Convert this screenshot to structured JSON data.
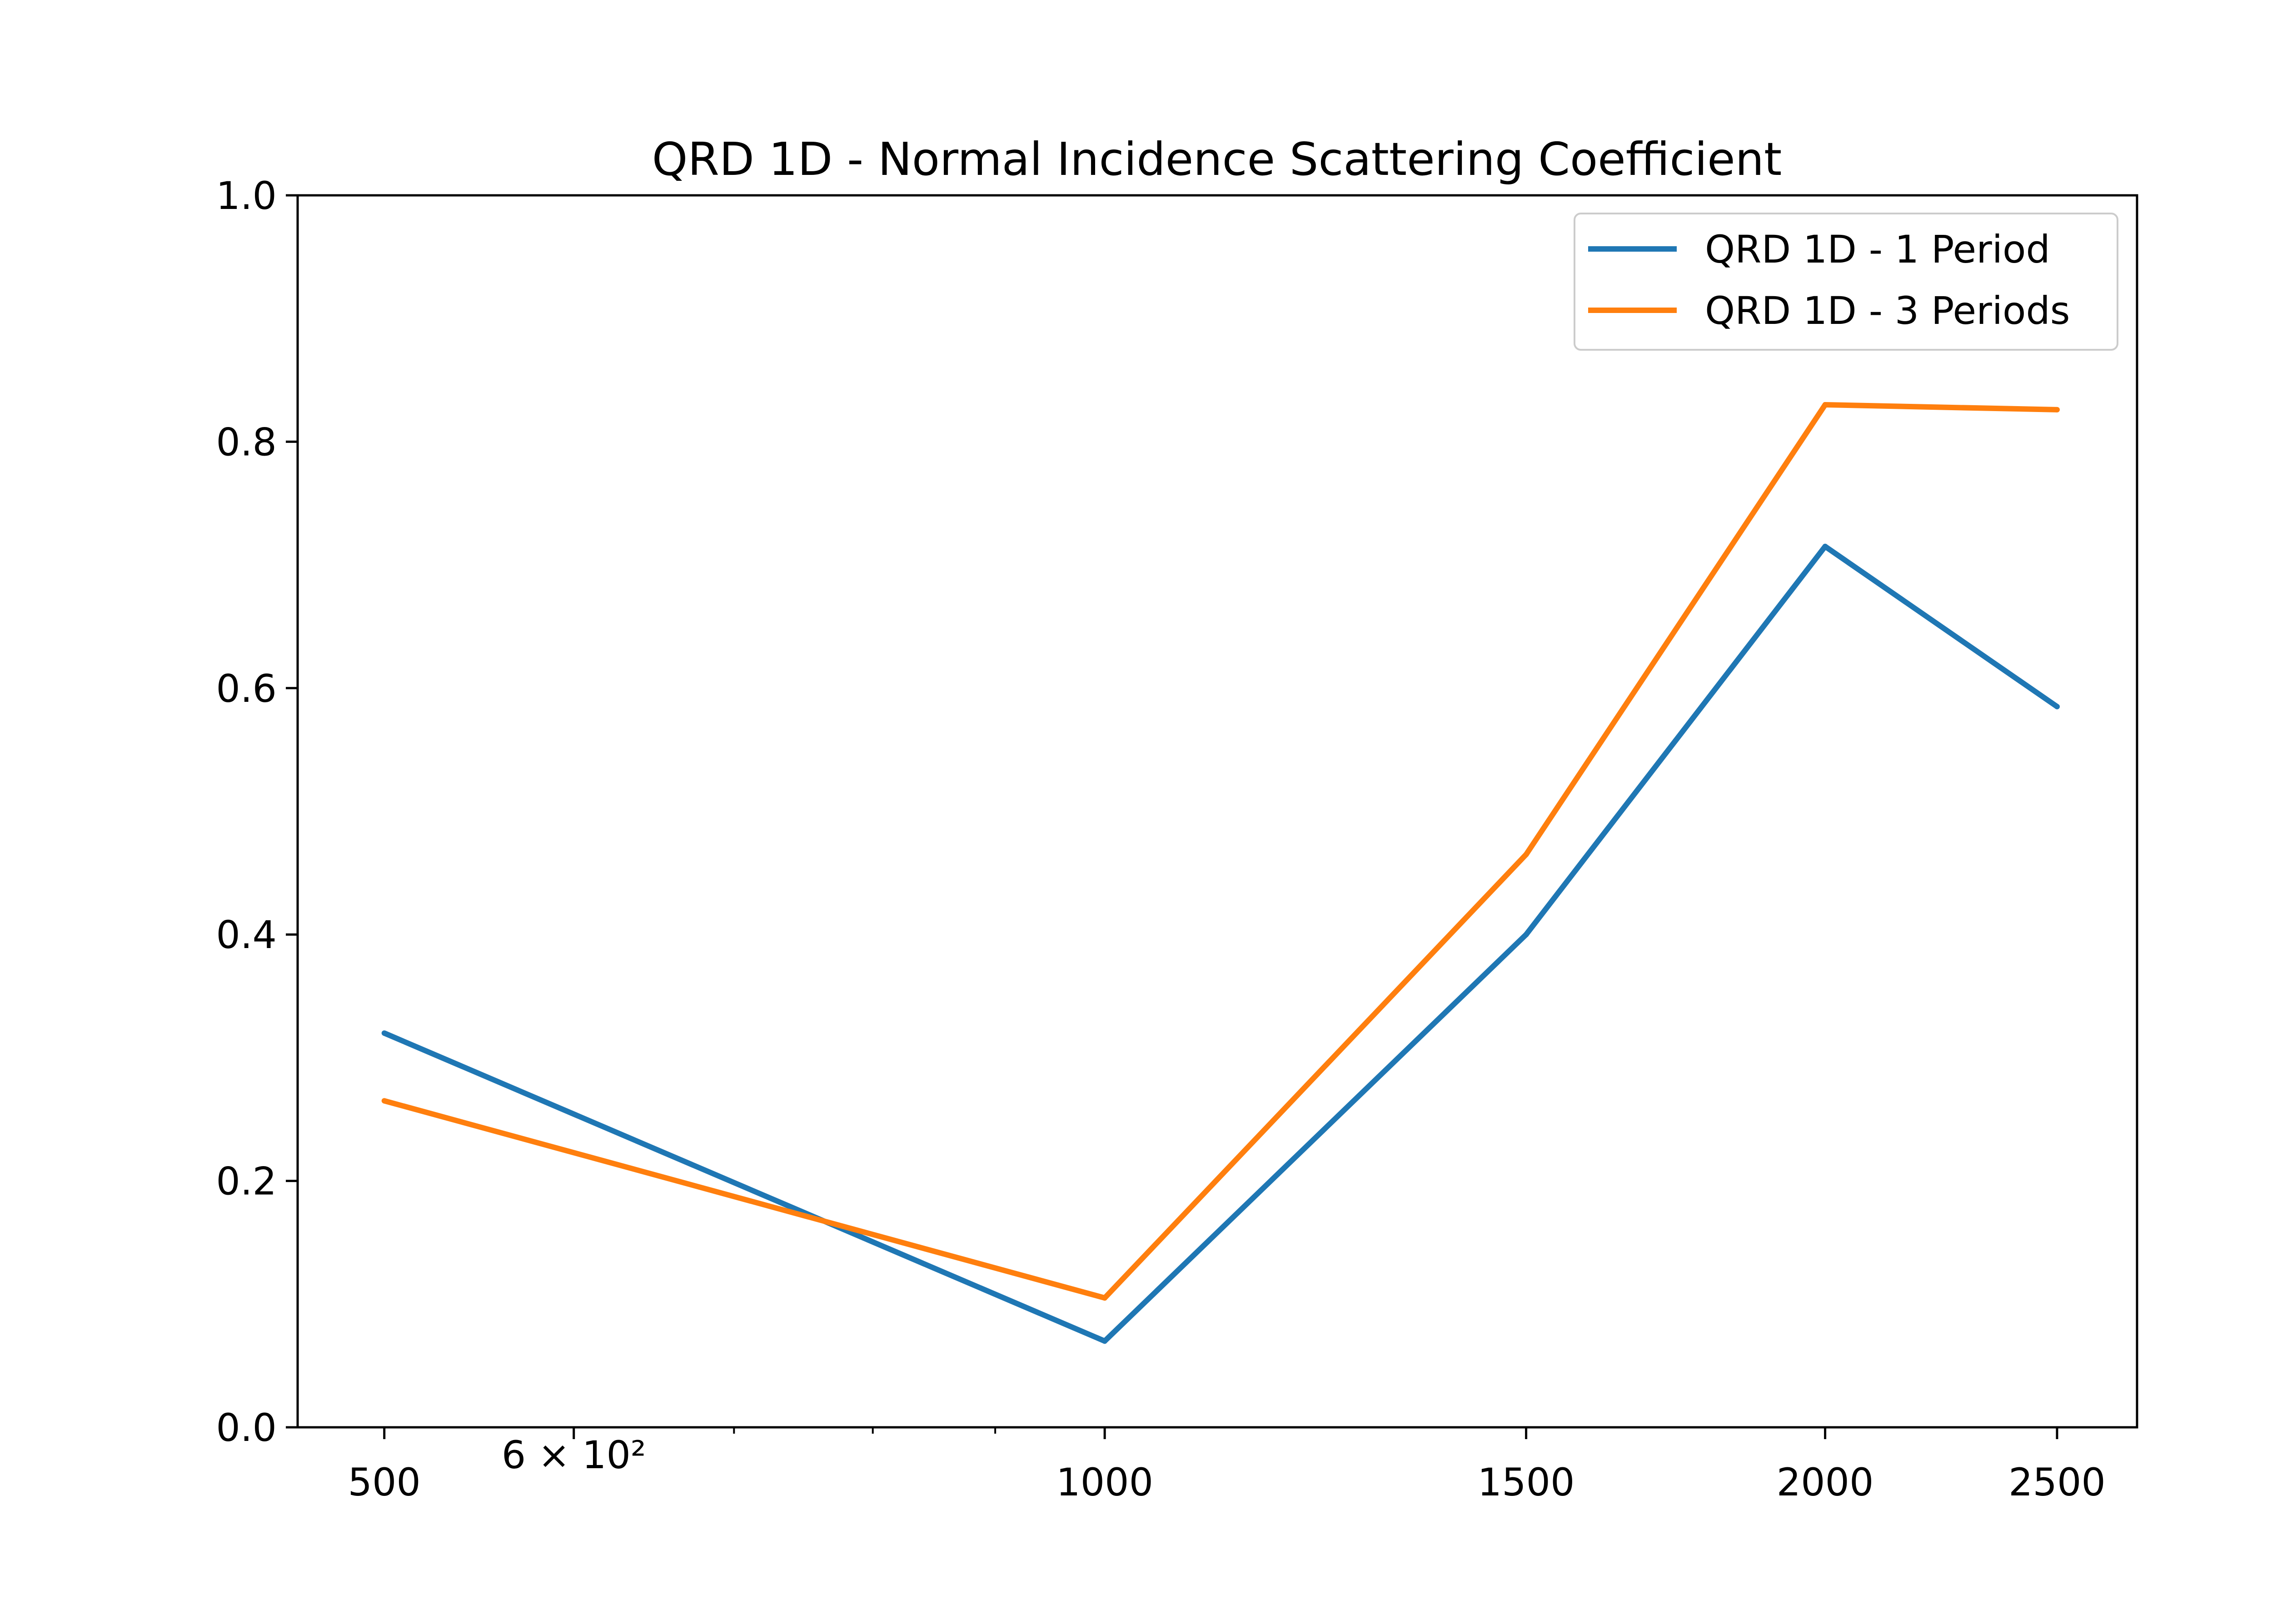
{
  "chart_data": {
    "type": "line",
    "title": "QRD 1D - Normal Incidence Scattering Coefficient",
    "xlabel": "",
    "ylabel": "",
    "x_scale": "log",
    "xlim": [
      460,
      2700
    ],
    "ylim": [
      0.0,
      1.0
    ],
    "x": [
      500,
      1000,
      1500,
      2000,
      2500
    ],
    "x_tick_labels": [
      {
        "value": 500,
        "label": "500"
      },
      {
        "value": 600,
        "label": "6 × 10²"
      },
      {
        "value": 1000,
        "label": "1000"
      },
      {
        "value": 1500,
        "label": "1500"
      },
      {
        "value": 2000,
        "label": "2000"
      },
      {
        "value": 2500,
        "label": "2500"
      }
    ],
    "x_minor_ticks": [
      700,
      800,
      900
    ],
    "y_ticks": [
      {
        "value": 0.0,
        "label": "0.0"
      },
      {
        "value": 0.2,
        "label": "0.2"
      },
      {
        "value": 0.4,
        "label": "0.4"
      },
      {
        "value": 0.6,
        "label": "0.6"
      },
      {
        "value": 0.8,
        "label": "0.8"
      },
      {
        "value": 1.0,
        "label": "1.0"
      }
    ],
    "series": [
      {
        "name": "QRD 1D - 1 Period",
        "color": "#1f77b4",
        "values": [
          0.32,
          0.07,
          0.4,
          0.715,
          0.585
        ]
      },
      {
        "name": "QRD 1D - 3 Periods",
        "color": "#ff7f0e",
        "values": [
          0.265,
          0.105,
          0.465,
          0.83,
          0.826
        ]
      }
    ],
    "grid": false,
    "legend": "top-right"
  }
}
